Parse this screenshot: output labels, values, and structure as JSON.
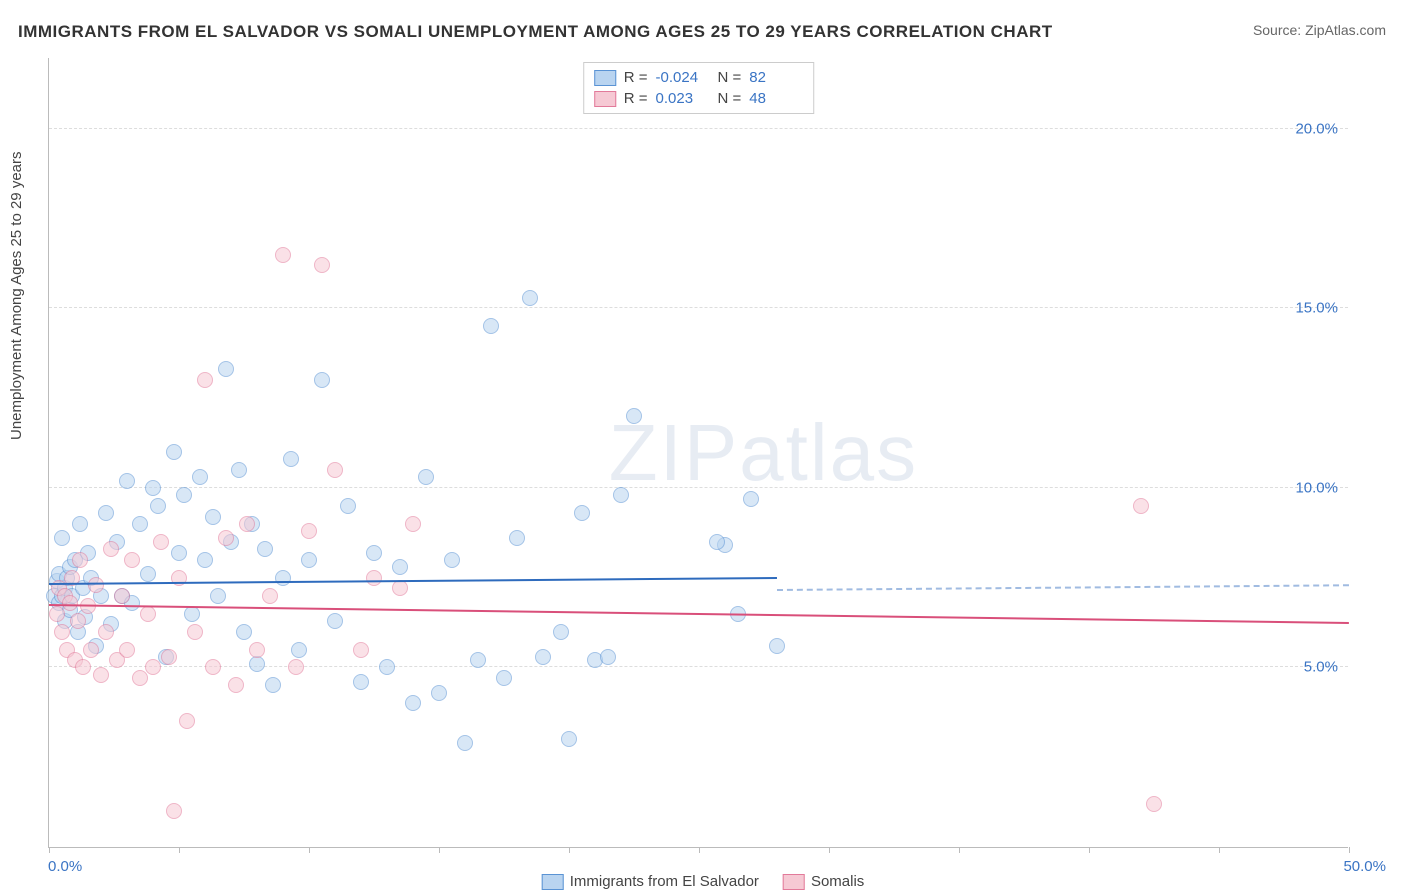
{
  "title": "IMMIGRANTS FROM EL SALVADOR VS SOMALI UNEMPLOYMENT AMONG AGES 25 TO 29 YEARS CORRELATION CHART",
  "source": "Source: ZipAtlas.com",
  "ylabel": "Unemployment Among Ages 25 to 29 years",
  "watermark": "ZIPatlas",
  "chart": {
    "type": "scatter",
    "xlim": [
      0,
      50
    ],
    "ylim": [
      0,
      22
    ],
    "x_ticks": [
      0,
      5,
      10,
      15,
      20,
      25,
      30,
      35,
      40,
      45,
      50
    ],
    "x_tick_labels": {
      "0": "0.0%",
      "50": "50.0%"
    },
    "y_gridlines": [
      5,
      10,
      15,
      20
    ],
    "y_tick_labels": {
      "5": "5.0%",
      "10": "10.0%",
      "15": "15.0%",
      "20": "20.0%"
    },
    "background_color": "#ffffff",
    "grid_color": "#dddddd",
    "axis_color": "#bbbbbb",
    "tick_label_color": "#3a74c4",
    "title_fontsize": 17,
    "label_fontsize": 15,
    "marker_radius": 8,
    "marker_opacity": 0.55,
    "series": [
      {
        "name": "Immigrants from El Salvador",
        "color_fill": "#b9d4f0",
        "color_stroke": "#5a93d4",
        "R": "-0.024",
        "N": "82",
        "trend": {
          "y_at_x0": 7.3,
          "y_at_x50": 7.0,
          "solid_until_x": 28,
          "color": "#2e6bbd"
        },
        "points": [
          [
            0.2,
            7.0
          ],
          [
            0.3,
            7.4
          ],
          [
            0.4,
            6.8
          ],
          [
            0.4,
            7.6
          ],
          [
            0.5,
            7.0
          ],
          [
            0.5,
            8.6
          ],
          [
            0.6,
            7.2
          ],
          [
            0.6,
            6.3
          ],
          [
            0.7,
            7.5
          ],
          [
            0.8,
            6.6
          ],
          [
            0.8,
            7.8
          ],
          [
            0.9,
            7.0
          ],
          [
            1.0,
            8.0
          ],
          [
            1.1,
            6.0
          ],
          [
            1.2,
            9.0
          ],
          [
            1.3,
            7.2
          ],
          [
            1.4,
            6.4
          ],
          [
            1.5,
            8.2
          ],
          [
            1.6,
            7.5
          ],
          [
            1.8,
            5.6
          ],
          [
            2.0,
            7.0
          ],
          [
            2.2,
            9.3
          ],
          [
            2.4,
            6.2
          ],
          [
            2.6,
            8.5
          ],
          [
            2.8,
            7.0
          ],
          [
            3.0,
            10.2
          ],
          [
            3.2,
            6.8
          ],
          [
            3.5,
            9.0
          ],
          [
            3.8,
            7.6
          ],
          [
            4.0,
            10.0
          ],
          [
            4.2,
            9.5
          ],
          [
            4.5,
            5.3
          ],
          [
            4.8,
            11.0
          ],
          [
            5.0,
            8.2
          ],
          [
            5.2,
            9.8
          ],
          [
            5.5,
            6.5
          ],
          [
            5.8,
            10.3
          ],
          [
            6.0,
            8.0
          ],
          [
            6.3,
            9.2
          ],
          [
            6.5,
            7.0
          ],
          [
            6.8,
            13.3
          ],
          [
            7.0,
            8.5
          ],
          [
            7.3,
            10.5
          ],
          [
            7.5,
            6.0
          ],
          [
            7.8,
            9.0
          ],
          [
            8.0,
            5.1
          ],
          [
            8.3,
            8.3
          ],
          [
            8.6,
            4.5
          ],
          [
            9.0,
            7.5
          ],
          [
            9.3,
            10.8
          ],
          [
            9.6,
            5.5
          ],
          [
            10.0,
            8.0
          ],
          [
            10.5,
            13.0
          ],
          [
            11.0,
            6.3
          ],
          [
            11.5,
            9.5
          ],
          [
            12.0,
            4.6
          ],
          [
            12.5,
            8.2
          ],
          [
            13.0,
            5.0
          ],
          [
            13.5,
            7.8
          ],
          [
            14.0,
            4.0
          ],
          [
            14.5,
            10.3
          ],
          [
            15.0,
            4.3
          ],
          [
            15.5,
            8.0
          ],
          [
            16.0,
            2.9
          ],
          [
            16.5,
            5.2
          ],
          [
            17.0,
            14.5
          ],
          [
            17.5,
            4.7
          ],
          [
            18.0,
            8.6
          ],
          [
            18.5,
            15.3
          ],
          [
            19.0,
            5.3
          ],
          [
            19.7,
            6.0
          ],
          [
            20.0,
            3.0
          ],
          [
            20.5,
            9.3
          ],
          [
            21.0,
            5.2
          ],
          [
            21.5,
            5.3
          ],
          [
            22.0,
            9.8
          ],
          [
            22.5,
            12.0
          ],
          [
            26.0,
            8.4
          ],
          [
            26.5,
            6.5
          ],
          [
            27.0,
            9.7
          ],
          [
            28.0,
            5.6
          ],
          [
            25.7,
            8.5
          ]
        ]
      },
      {
        "name": "Somalis",
        "color_fill": "#f6c9d4",
        "color_stroke": "#e27a9a",
        "R": "0.023",
        "N": "48",
        "trend": {
          "y_at_x0": 6.7,
          "y_at_x50": 7.2,
          "solid_until_x": 50,
          "color": "#d94f7a"
        },
        "points": [
          [
            0.3,
            6.5
          ],
          [
            0.4,
            7.2
          ],
          [
            0.5,
            6.0
          ],
          [
            0.6,
            7.0
          ],
          [
            0.7,
            5.5
          ],
          [
            0.8,
            6.8
          ],
          [
            0.9,
            7.5
          ],
          [
            1.0,
            5.2
          ],
          [
            1.1,
            6.3
          ],
          [
            1.2,
            8.0
          ],
          [
            1.3,
            5.0
          ],
          [
            1.5,
            6.7
          ],
          [
            1.6,
            5.5
          ],
          [
            1.8,
            7.3
          ],
          [
            2.0,
            4.8
          ],
          [
            2.2,
            6.0
          ],
          [
            2.4,
            8.3
          ],
          [
            2.6,
            5.2
          ],
          [
            2.8,
            7.0
          ],
          [
            3.0,
            5.5
          ],
          [
            3.2,
            8.0
          ],
          [
            3.5,
            4.7
          ],
          [
            3.8,
            6.5
          ],
          [
            4.0,
            5.0
          ],
          [
            4.3,
            8.5
          ],
          [
            4.6,
            5.3
          ],
          [
            5.0,
            7.5
          ],
          [
            5.3,
            3.5
          ],
          [
            5.6,
            6.0
          ],
          [
            6.0,
            13.0
          ],
          [
            6.3,
            5.0
          ],
          [
            6.8,
            8.6
          ],
          [
            7.2,
            4.5
          ],
          [
            7.6,
            9.0
          ],
          [
            8.0,
            5.5
          ],
          [
            8.5,
            7.0
          ],
          [
            9.0,
            16.5
          ],
          [
            9.5,
            5.0
          ],
          [
            10.0,
            8.8
          ],
          [
            10.5,
            16.2
          ],
          [
            11.0,
            10.5
          ],
          [
            12.0,
            5.5
          ],
          [
            12.5,
            7.5
          ],
          [
            13.5,
            7.2
          ],
          [
            4.8,
            1.0
          ],
          [
            42.0,
            9.5
          ],
          [
            42.5,
            1.2
          ],
          [
            14.0,
            9.0
          ]
        ]
      }
    ]
  },
  "legend": {
    "items": [
      {
        "label": "Immigrants from El Salvador",
        "fill": "#b9d4f0",
        "stroke": "#5a93d4"
      },
      {
        "label": "Somalis",
        "fill": "#f6c9d4",
        "stroke": "#e27a9a"
      }
    ]
  }
}
